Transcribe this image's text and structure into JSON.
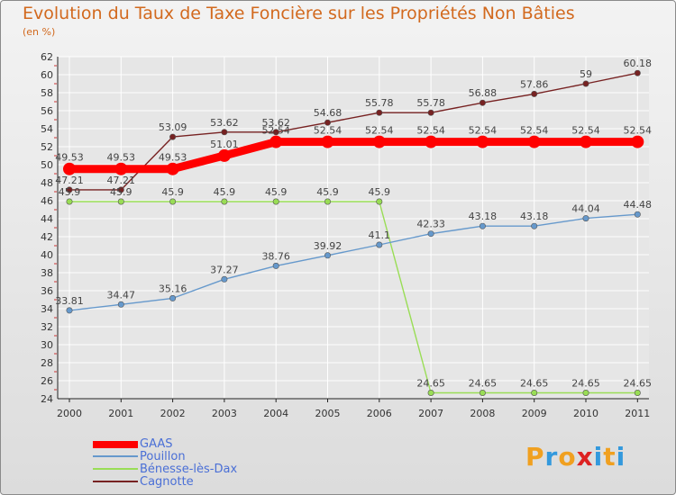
{
  "title": "Evolution du Taux de Taxe Foncière sur les Propriétés Non Bâties",
  "unit": "(en %)",
  "logo": {
    "letters": [
      "P",
      "r",
      "o",
      "x",
      "i",
      "t",
      "i"
    ]
  },
  "colors": {
    "GAAS": "#ff0000",
    "Pouillon": "#6699cc",
    "Benesse": "#99dd55",
    "Cagnotte": "#772222",
    "grid": "#ffffff",
    "axisText": "#333333",
    "title": "#d2691e"
  },
  "chart_data": {
    "type": "line",
    "title": "Evolution du Taux de Taxe Foncière sur les Propriétés Non Bâties",
    "ylabel": "(en %)",
    "xlabel": "",
    "categories": [
      "2000",
      "2001",
      "2002",
      "2003",
      "2004",
      "2005",
      "2006",
      "2007",
      "2008",
      "2009",
      "2010",
      "2011"
    ],
    "ylim": [
      24,
      62
    ],
    "yticks": [
      24,
      26,
      28,
      30,
      32,
      34,
      36,
      38,
      40,
      42,
      44,
      46,
      48,
      50,
      52,
      54,
      56,
      58,
      60,
      62
    ],
    "grid": true,
    "legend": "bottom-left",
    "series": [
      {
        "name": "GAAS",
        "values": [
          49.53,
          49.53,
          49.53,
          51.01,
          52.54,
          52.54,
          52.54,
          52.54,
          52.54,
          52.54,
          52.54,
          52.54
        ],
        "labels": [
          "49.53",
          "49.53",
          "49.53",
          "51.01",
          "52.54",
          "52.54",
          "52.54",
          "52.54",
          "52.54",
          "52.54",
          "52.54",
          "52.54"
        ]
      },
      {
        "name": "Pouillon",
        "values": [
          33.81,
          34.47,
          35.16,
          37.27,
          38.76,
          39.92,
          41.1,
          42.33,
          43.18,
          43.18,
          44.04,
          44.48
        ],
        "labels": [
          "33.81",
          "34.47",
          "35.16",
          "37.27",
          "38.76",
          "39.92",
          "41.1",
          "42.33",
          "43.18",
          "43.18",
          "44.04",
          "44.48"
        ]
      },
      {
        "name": "Bénesse-lès-Dax",
        "values": [
          45.9,
          45.9,
          45.9,
          45.9,
          45.9,
          45.9,
          45.9,
          24.65,
          24.65,
          24.65,
          24.65,
          24.65
        ],
        "labels": [
          "45.9",
          "45.9",
          "45.9",
          "45.9",
          "45.9",
          "45.9",
          "45.9",
          "24.65",
          "24.65",
          "24.65",
          "24.65",
          "24.65"
        ]
      },
      {
        "name": "Cagnotte",
        "values": [
          47.21,
          47.21,
          53.09,
          53.62,
          53.62,
          54.68,
          55.78,
          55.78,
          56.88,
          57.86,
          59,
          60.18
        ],
        "labels": [
          "47.21",
          "47.21",
          "53.09",
          "53.62",
          "53.62",
          "54.68",
          "55.78",
          "55.78",
          "56.88",
          "57.86",
          "59",
          "60.18"
        ]
      }
    ]
  }
}
